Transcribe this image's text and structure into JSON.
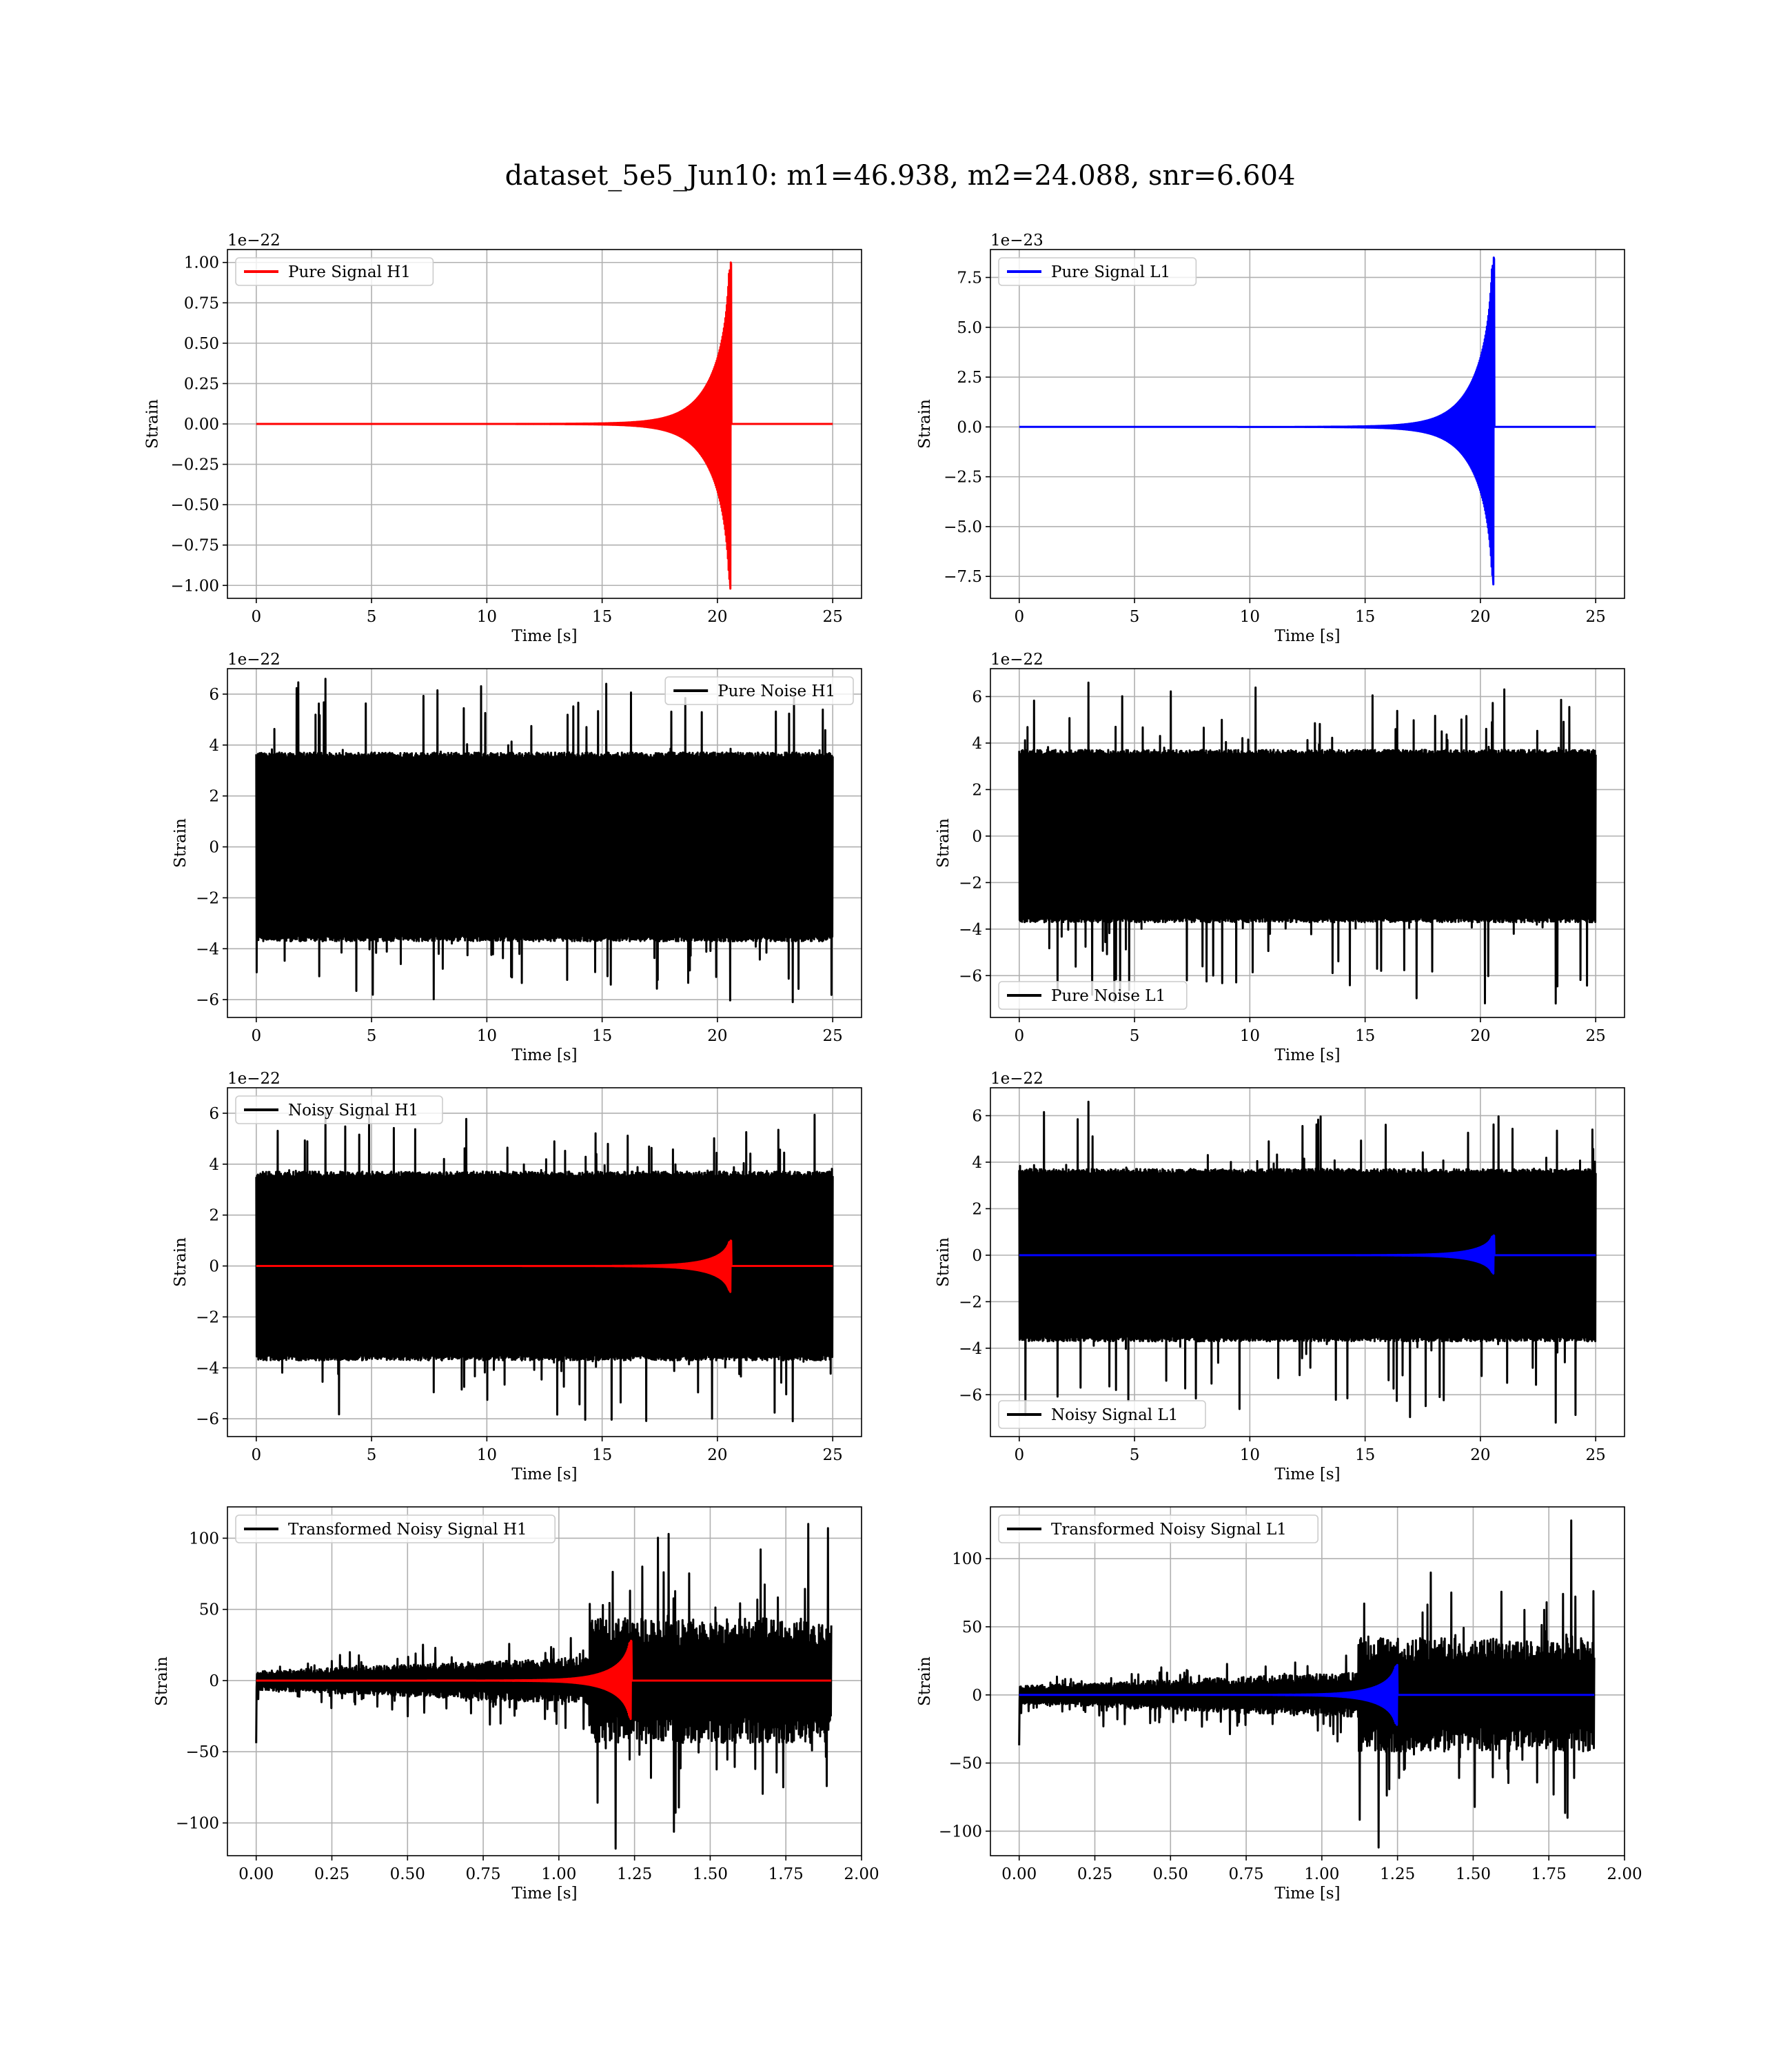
{
  "figure": {
    "title": "dataset_5e5_Jun10: m1=46.938, m2=24.088, snr=6.604"
  },
  "chart_data": [
    {
      "type": "line",
      "xlabel": "Time [s]",
      "ylabel": "Strain",
      "offset_text": "1e−22",
      "xlim": [
        -1.25,
        26.25
      ],
      "ylim": [
        -1.08,
        1.08
      ],
      "xticks": [
        0,
        5,
        10,
        15,
        20,
        25
      ],
      "xtick_labels": [
        "0",
        "5",
        "10",
        "15",
        "20",
        "25"
      ],
      "yticks": [
        1.0,
        0.75,
        0.5,
        0.25,
        0.0,
        -0.25,
        -0.5,
        -0.75,
        -1.0
      ],
      "ytick_labels": [
        "1.00",
        "0.75",
        "0.50",
        "0.25",
        "0.00",
        "−0.25",
        "−0.50",
        "−0.75",
        "−1.00"
      ],
      "grid": true,
      "legend": "upper left",
      "series": [
        {
          "name": "Pure Signal H1",
          "color": "#ff0000",
          "kind": "chirp",
          "params": {
            "x0": 0,
            "x1": 25,
            "tc": 20.6,
            "peak": 1.0,
            "trough": -1.02,
            "baseline": 0
          }
        }
      ]
    },
    {
      "type": "line",
      "xlabel": "Time [s]",
      "ylabel": "Strain",
      "offset_text": "1e−23",
      "xlim": [
        -1.25,
        26.25
      ],
      "ylim": [
        -8.6,
        8.9
      ],
      "xticks": [
        0,
        5,
        10,
        15,
        20,
        25
      ],
      "xtick_labels": [
        "0",
        "5",
        "10",
        "15",
        "20",
        "25"
      ],
      "yticks": [
        7.5,
        5.0,
        2.5,
        0.0,
        -2.5,
        -5.0,
        -7.5
      ],
      "ytick_labels": [
        "7.5",
        "5.0",
        "2.5",
        "0.0",
        "−2.5",
        "−5.0",
        "−7.5"
      ],
      "grid": true,
      "legend": "upper left",
      "series": [
        {
          "name": "Pure Signal L1",
          "color": "#0000ff",
          "kind": "chirp",
          "params": {
            "x0": 0,
            "x1": 25,
            "tc": 20.6,
            "peak": 8.5,
            "trough": -7.9,
            "baseline": 0
          }
        }
      ]
    },
    {
      "type": "line",
      "xlabel": "Time [s]",
      "ylabel": "Strain",
      "offset_text": "1e−22",
      "xlim": [
        -1.25,
        26.25
      ],
      "ylim": [
        -6.7,
        7.0
      ],
      "xticks": [
        0,
        5,
        10,
        15,
        20,
        25
      ],
      "xtick_labels": [
        "0",
        "5",
        "10",
        "15",
        "20",
        "25"
      ],
      "yticks": [
        6,
        4,
        2,
        0,
        -2,
        -4,
        -6
      ],
      "ytick_labels": [
        "6",
        "4",
        "2",
        "0",
        "−2",
        "−4",
        "−6"
      ],
      "grid": true,
      "legend": "upper right",
      "series": [
        {
          "name": "Pure Noise H1",
          "color": "#000000",
          "kind": "noise",
          "params": {
            "x0": 0,
            "x1": 25,
            "band": 3.6,
            "max": 6.6,
            "min": -6.1
          }
        }
      ]
    },
    {
      "type": "line",
      "xlabel": "Time [s]",
      "ylabel": "Strain",
      "offset_text": "1e−22",
      "xlim": [
        -1.25,
        26.25
      ],
      "ylim": [
        -7.8,
        7.2
      ],
      "xticks": [
        0,
        5,
        10,
        15,
        20,
        25
      ],
      "xtick_labels": [
        "0",
        "5",
        "10",
        "15",
        "20",
        "25"
      ],
      "yticks": [
        6,
        4,
        2,
        0,
        -2,
        -4,
        -6
      ],
      "ytick_labels": [
        "6",
        "4",
        "2",
        "0",
        "−2",
        "−4",
        "−6"
      ],
      "grid": true,
      "legend": "lower left",
      "series": [
        {
          "name": "Pure Noise L1",
          "color": "#000000",
          "kind": "noise",
          "params": {
            "x0": 0,
            "x1": 25,
            "band": 3.6,
            "max": 6.6,
            "min": -7.2
          }
        }
      ]
    },
    {
      "type": "line",
      "xlabel": "Time [s]",
      "ylabel": "Strain",
      "offset_text": "1e−22",
      "xlim": [
        -1.25,
        26.25
      ],
      "ylim": [
        -6.7,
        7.0
      ],
      "xticks": [
        0,
        5,
        10,
        15,
        20,
        25
      ],
      "xtick_labels": [
        "0",
        "5",
        "10",
        "15",
        "20",
        "25"
      ],
      "yticks": [
        6,
        4,
        2,
        0,
        -2,
        -4,
        -6
      ],
      "ytick_labels": [
        "6",
        "4",
        "2",
        "0",
        "−2",
        "−4",
        "−6"
      ],
      "grid": true,
      "legend": "upper left",
      "series": [
        {
          "name": "Noisy Signal H1",
          "color": "#000000",
          "kind": "noise",
          "params": {
            "x0": 0,
            "x1": 25,
            "band": 3.6,
            "max": 6.0,
            "min": -6.1
          }
        },
        {
          "color": "#ff0000",
          "kind": "chirp",
          "params": {
            "x0": 0,
            "x1": 25,
            "tc": 20.6,
            "peak": 1.0,
            "trough": -1.02,
            "baseline": 0
          }
        }
      ]
    },
    {
      "type": "line",
      "xlabel": "Time [s]",
      "ylabel": "Strain",
      "offset_text": "1e−22",
      "xlim": [
        -1.25,
        26.25
      ],
      "ylim": [
        -7.8,
        7.2
      ],
      "xticks": [
        0,
        5,
        10,
        15,
        20,
        25
      ],
      "xtick_labels": [
        "0",
        "5",
        "10",
        "15",
        "20",
        "25"
      ],
      "yticks": [
        6,
        4,
        2,
        0,
        -2,
        -4,
        -6
      ],
      "ytick_labels": [
        "6",
        "4",
        "2",
        "0",
        "−2",
        "−4",
        "−6"
      ],
      "grid": true,
      "legend": "lower left",
      "series": [
        {
          "name": "Noisy Signal L1",
          "color": "#000000",
          "kind": "noise",
          "params": {
            "x0": 0,
            "x1": 25,
            "band": 3.6,
            "max": 6.6,
            "min": -7.2
          }
        },
        {
          "color": "#0000ff",
          "kind": "chirp",
          "params": {
            "x0": 0,
            "x1": 25,
            "tc": 20.6,
            "peak": 0.85,
            "trough": -0.79,
            "baseline": 0
          }
        }
      ]
    },
    {
      "type": "line",
      "xlabel": "Time [s]",
      "ylabel": "Strain",
      "offset_text": "",
      "xlim": [
        -0.095,
        2.0
      ],
      "ylim": [
        -123,
        122
      ],
      "xticks": [
        0.0,
        0.25,
        0.5,
        0.75,
        1.0,
        1.25,
        1.5,
        1.75,
        2.0
      ],
      "xtick_labels": [
        "0.00",
        "0.25",
        "0.50",
        "0.75",
        "1.00",
        "1.25",
        "1.50",
        "1.75",
        "2.00"
      ],
      "yticks": [
        100,
        50,
        0,
        -50,
        -100
      ],
      "ytick_labels": [
        "100",
        "50",
        "0",
        "−50",
        "−100"
      ],
      "grid": true,
      "legend": "upper left",
      "series": [
        {
          "name": "Transformed Noisy Signal H1",
          "color": "#000000",
          "kind": "tnoise",
          "params": {
            "x0": 0,
            "x1": 1.9,
            "jump": 1.1,
            "band_lo": 6,
            "band_hi": 40,
            "max": 110,
            "min": -118,
            "start_spike": -44
          }
        },
        {
          "color": "#ff0000",
          "kind": "chirp",
          "params": {
            "x0": 0,
            "x1": 1.9,
            "tc": 1.24,
            "peak": 28,
            "trough": -27,
            "baseline": 0
          }
        }
      ]
    },
    {
      "type": "line",
      "xlabel": "Time [s]",
      "ylabel": "Strain",
      "offset_text": "",
      "xlim": [
        -0.095,
        2.0
      ],
      "ylim": [
        -118,
        138
      ],
      "xticks": [
        0.0,
        0.25,
        0.5,
        0.75,
        1.0,
        1.25,
        1.5,
        1.75,
        2.0
      ],
      "xtick_labels": [
        "0.00",
        "0.25",
        "0.50",
        "0.75",
        "1.00",
        "1.25",
        "1.50",
        "1.75",
        "2.00"
      ],
      "yticks": [
        100,
        50,
        0,
        -50,
        -100
      ],
      "ytick_labels": [
        "100",
        "50",
        "0",
        "−50",
        "−100"
      ],
      "grid": true,
      "legend": "upper left",
      "series": [
        {
          "name": "Transformed Noisy Signal L1",
          "color": "#000000",
          "kind": "tnoise",
          "params": {
            "x0": 0,
            "x1": 1.9,
            "jump": 1.12,
            "band_lo": 6,
            "band_hi": 38,
            "max": 128,
            "min": -112,
            "start_spike": -37
          }
        },
        {
          "color": "#0000ff",
          "kind": "chirp",
          "params": {
            "x0": 0,
            "x1": 1.9,
            "tc": 1.25,
            "peak": 22,
            "trough": -22,
            "baseline": 0
          }
        }
      ]
    }
  ]
}
